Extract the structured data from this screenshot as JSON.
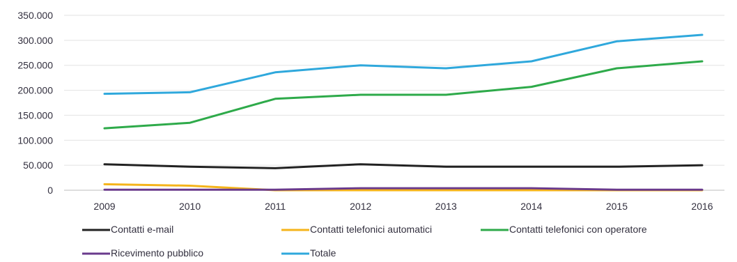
{
  "chart_data": {
    "type": "line",
    "title": "",
    "xlabel": "",
    "ylabel": "",
    "x": [
      "2009",
      "2010",
      "2011",
      "2012",
      "2013",
      "2014",
      "2015",
      "2016"
    ],
    "y_ticks": [
      "0",
      "50.000",
      "100.000",
      "150.000",
      "200.000",
      "250.000",
      "300.000",
      "350.000"
    ],
    "ylim": [
      0,
      350000
    ],
    "grid": true,
    "legend_position": "bottom",
    "series": [
      {
        "name": "Contatti e-mail",
        "color": "#222222",
        "values": [
          52000,
          47000,
          44000,
          52000,
          47000,
          47000,
          47000,
          50000
        ]
      },
      {
        "name": "Contatti telefonici automatici",
        "color": "#f5b41b",
        "values": [
          12000,
          9000,
          0,
          0,
          0,
          0,
          0,
          0
        ]
      },
      {
        "name": "Contatti telefonici con operatore",
        "color": "#2eaa4a",
        "values": [
          124000,
          135000,
          183000,
          191000,
          191000,
          207000,
          244000,
          258000
        ]
      },
      {
        "name": "Ricevimento pubblico",
        "color": "#6a3a8c",
        "values": [
          1000,
          1000,
          1000,
          4000,
          4000,
          4000,
          1000,
          1000
        ]
      },
      {
        "name": "Totale",
        "color": "#2fa8dc",
        "values": [
          193000,
          196000,
          236000,
          250000,
          244000,
          258000,
          298000,
          311000
        ]
      }
    ]
  }
}
